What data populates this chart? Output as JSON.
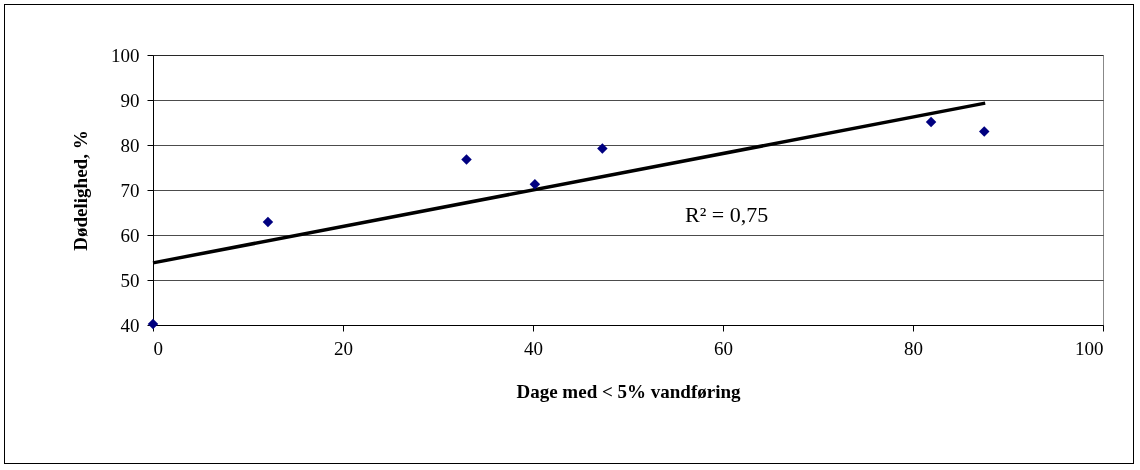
{
  "chart_data": {
    "type": "scatter",
    "xlabel": "Dage med < 5% vandføring",
    "ylabel": "Dødelighed, %",
    "xlim": [
      0,
      100
    ],
    "ylim": [
      40,
      100
    ],
    "xticks": [
      0,
      20,
      40,
      60,
      80,
      100
    ],
    "yticks": [
      40,
      50,
      60,
      70,
      80,
      90,
      100
    ],
    "grid": "y",
    "series": [
      {
        "color": "#000080",
        "marker": "diamond",
        "x": [
          0,
          12.1,
          33.0,
          40.2,
          47.3,
          81.9,
          87.5
        ],
        "values": [
          40.2,
          62.9,
          76.8,
          71.3,
          79.2,
          85.1,
          83.0
        ]
      },
      {
        "type": "line",
        "color": "#000000",
        "marker": "none",
        "x": [
          0,
          87.6
        ],
        "values": [
          53.8,
          89.3
        ]
      }
    ],
    "annotations": [
      "R² = 0,75"
    ]
  }
}
